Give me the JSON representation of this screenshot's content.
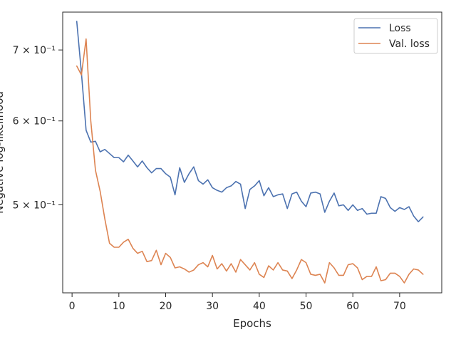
{
  "chart_data": {
    "type": "line",
    "title": "",
    "xlabel": "Epochs",
    "ylabel": "Negative log-likelihood",
    "yscale": "log",
    "xlim": [
      -2,
      79
    ],
    "ylim": [
      0.413,
      0.76
    ],
    "grid": false,
    "legend_position": "top-right",
    "x_ticks": [
      0,
      10,
      20,
      30,
      40,
      50,
      60,
      70
    ],
    "y_ticks": [
      {
        "value": 0.5,
        "label": "5 × 10⁻¹"
      },
      {
        "value": 0.6,
        "label": "6 × 10⁻¹"
      },
      {
        "value": 0.7,
        "label": "7 × 10⁻¹"
      }
    ],
    "x": [
      1,
      2,
      3,
      4,
      5,
      6,
      7,
      8,
      9,
      10,
      11,
      12,
      13,
      14,
      15,
      16,
      17,
      18,
      19,
      20,
      21,
      22,
      23,
      24,
      25,
      26,
      27,
      28,
      29,
      30,
      31,
      32,
      33,
      34,
      35,
      36,
      37,
      38,
      39,
      40,
      41,
      42,
      43,
      44,
      45,
      46,
      47,
      48,
      49,
      50,
      51,
      52,
      53,
      54,
      55,
      56,
      57,
      58,
      59,
      60,
      61,
      62,
      63,
      64,
      65,
      66,
      67,
      68,
      69,
      70,
      71,
      72,
      73,
      74,
      75
    ],
    "series": [
      {
        "name": "Loss",
        "color": "#4c72b0",
        "values": [
          0.745,
          0.666,
          0.588,
          0.573,
          0.574,
          0.561,
          0.564,
          0.559,
          0.554,
          0.554,
          0.549,
          0.557,
          0.55,
          0.543,
          0.55,
          0.542,
          0.536,
          0.541,
          0.541,
          0.535,
          0.531,
          0.511,
          0.542,
          0.525,
          0.535,
          0.543,
          0.527,
          0.523,
          0.528,
          0.519,
          0.516,
          0.514,
          0.519,
          0.521,
          0.526,
          0.523,
          0.496,
          0.517,
          0.521,
          0.527,
          0.51,
          0.519,
          0.509,
          0.511,
          0.512,
          0.496,
          0.512,
          0.514,
          0.504,
          0.498,
          0.513,
          0.514,
          0.512,
          0.492,
          0.504,
          0.513,
          0.499,
          0.5,
          0.494,
          0.5,
          0.494,
          0.496,
          0.49,
          0.491,
          0.491,
          0.509,
          0.507,
          0.497,
          0.493,
          0.497,
          0.495,
          0.498,
          0.488,
          0.482,
          0.487
        ]
      },
      {
        "name": "Val. loss",
        "color": "#dd8452",
        "values": [
          0.676,
          0.663,
          0.717,
          0.6,
          0.539,
          0.515,
          0.485,
          0.46,
          0.456,
          0.456,
          0.461,
          0.464,
          0.455,
          0.45,
          0.452,
          0.442,
          0.443,
          0.453,
          0.439,
          0.45,
          0.446,
          0.436,
          0.437,
          0.435,
          0.432,
          0.434,
          0.439,
          0.441,
          0.437,
          0.448,
          0.435,
          0.44,
          0.433,
          0.44,
          0.432,
          0.444,
          0.439,
          0.434,
          0.441,
          0.43,
          0.427,
          0.438,
          0.434,
          0.441,
          0.434,
          0.433,
          0.426,
          0.434,
          0.444,
          0.441,
          0.43,
          0.429,
          0.43,
          0.422,
          0.441,
          0.436,
          0.429,
          0.429,
          0.439,
          0.44,
          0.436,
          0.425,
          0.428,
          0.428,
          0.437,
          0.424,
          0.425,
          0.431,
          0.431,
          0.428,
          0.422,
          0.43,
          0.435,
          0.434,
          0.43
        ]
      }
    ]
  }
}
